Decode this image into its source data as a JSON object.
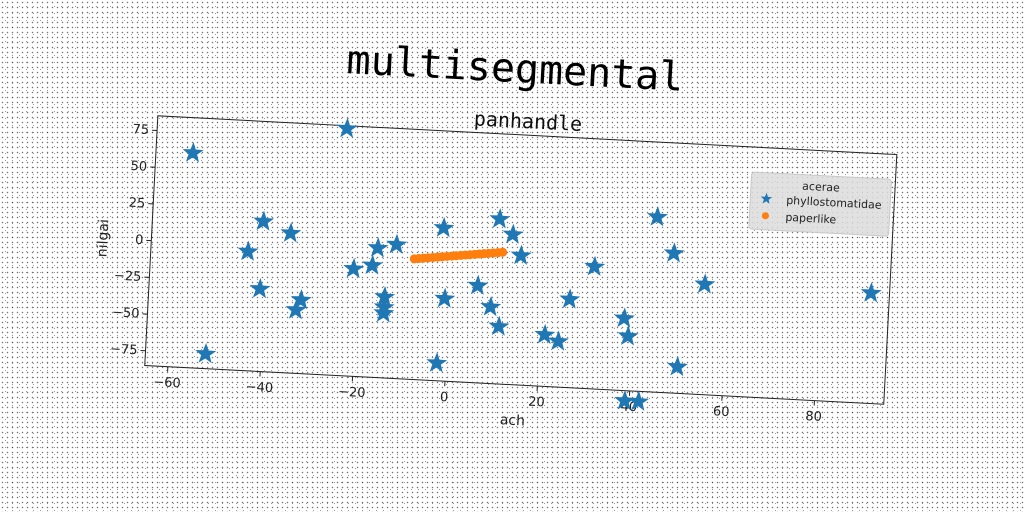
{
  "chart_data": {
    "type": "scatter",
    "title": "multisegmental",
    "subtitle": "panhandle",
    "xlabel": "ach",
    "ylabel": "nilgai",
    "xlim": [
      -65,
      95
    ],
    "ylim": [
      -85,
      85
    ],
    "xticks": [
      -60,
      -40,
      -20,
      0,
      20,
      40,
      60,
      80
    ],
    "yticks": [
      -75,
      -50,
      -25,
      0,
      25,
      50,
      75
    ],
    "grid": false,
    "legend": {
      "title": "acerae",
      "position": "top-right"
    },
    "series": [
      {
        "name": "phyllostomatidae",
        "marker": "star",
        "color": "#1f77b4",
        "points": [
          [
            -57,
            61
          ],
          [
            -52,
            -75
          ],
          [
            -44,
            -4
          ],
          [
            -41,
            17
          ],
          [
            -41,
            -29
          ],
          [
            -35,
            10
          ],
          [
            -33,
            -42
          ],
          [
            -32,
            -35
          ],
          [
            -24,
            83
          ],
          [
            -21,
            -12
          ],
          [
            -17,
            -9
          ],
          [
            -16,
            3
          ],
          [
            -14,
            -30
          ],
          [
            -14,
            -37
          ],
          [
            -14,
            -41
          ],
          [
            -12,
            6
          ],
          [
            -2,
            19
          ],
          [
            -2,
            -73
          ],
          [
            -1,
            -29
          ],
          [
            6,
            -19
          ],
          [
            9,
            -33
          ],
          [
            10,
            27
          ],
          [
            11,
            -46
          ],
          [
            13,
            17
          ],
          [
            15,
            3
          ],
          [
            21,
            -50
          ],
          [
            24,
            -54
          ],
          [
            26,
            -25
          ],
          [
            31,
            -2
          ],
          [
            38,
            -36
          ],
          [
            39,
            -48
          ],
          [
            39,
            -92
          ],
          [
            42,
            -92
          ],
          [
            44,
            34
          ],
          [
            48,
            10
          ],
          [
            50,
            -67
          ],
          [
            55,
            -10
          ],
          [
            91,
            -10
          ]
        ]
      },
      {
        "name": "paperlike",
        "marker": "circle",
        "color": "#ff7f0e",
        "points": [
          [
            -8,
            -3
          ],
          [
            -7,
            -2.6
          ],
          [
            -6,
            -2.2
          ],
          [
            -5,
            -1.8
          ],
          [
            -4,
            -1.4
          ],
          [
            -3,
            -1
          ],
          [
            -2,
            -0.6
          ],
          [
            -1,
            -0.2
          ],
          [
            0,
            0.2
          ],
          [
            1,
            0.6
          ],
          [
            2,
            1
          ],
          [
            3,
            1.4
          ],
          [
            4,
            1.8
          ],
          [
            5,
            2.2
          ],
          [
            6,
            2.6
          ],
          [
            7,
            3
          ],
          [
            8,
            3.4
          ],
          [
            9,
            3.8
          ],
          [
            10,
            4.2
          ],
          [
            11,
            4.6
          ]
        ]
      }
    ]
  }
}
